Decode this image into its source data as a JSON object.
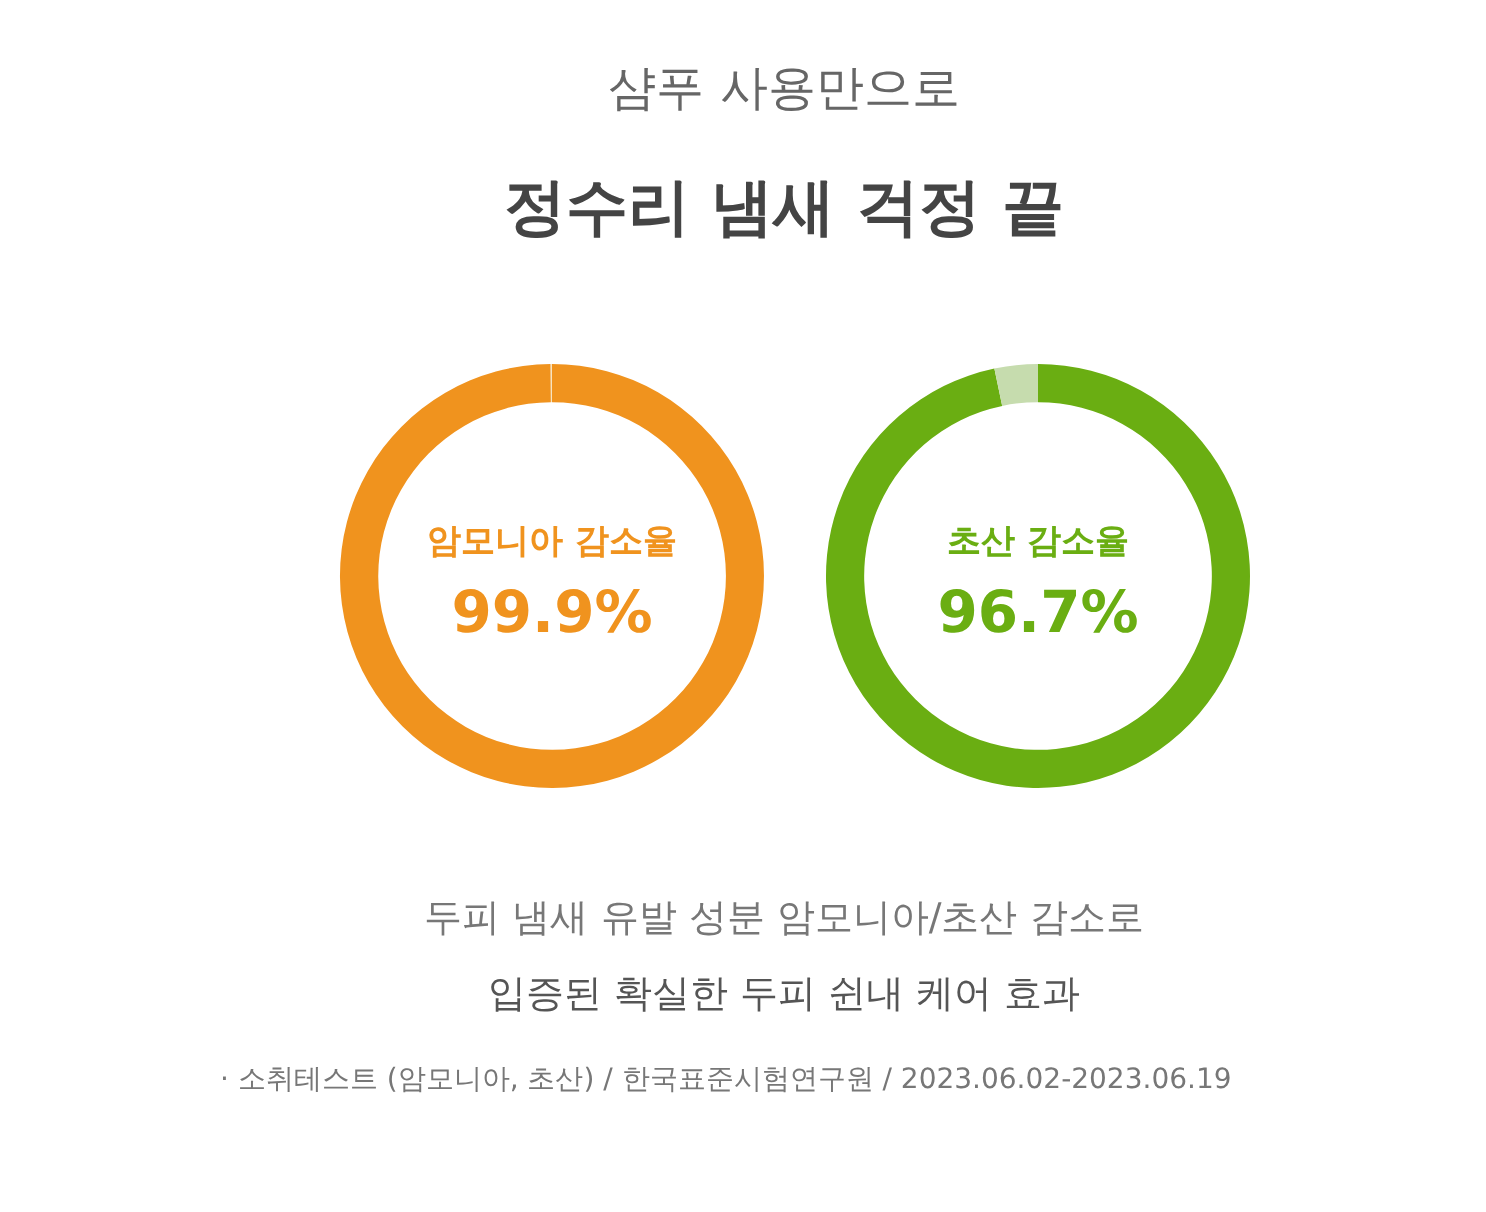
{
  "chart_data": [
    {
      "type": "other",
      "subtitle": "샴푸 사용만으로",
      "title": "정수리 냄새 걱정 끝",
      "annotations": [
        "두피 냄새 유발 성분 암모니아/초산 감소로",
        "입증된 확실한 두피 쉰내 케어 효과",
        "· 소취테스트 (암모니아, 초산)  / 한국표준시험연구원 / 2023.06.02-2023.06.19"
      ]
    },
    {
      "type": "donut",
      "title": "암모니아 감소율",
      "categories": [
        null,
        null
      ],
      "values": [
        99.9,
        0.1
      ],
      "colors": [
        "#f0931e",
        "#f7e3c0"
      ],
      "value_labels": [
        "99.9%",
        null
      ]
    },
    {
      "type": "donut",
      "title": "초산 감소율",
      "categories": [
        null,
        null
      ],
      "values": [
        96.7,
        3.3
      ],
      "colors": [
        "#6aae12",
        "#c6dcae"
      ],
      "value_labels": [
        "96.7%",
        null
      ]
    }
  ]
}
